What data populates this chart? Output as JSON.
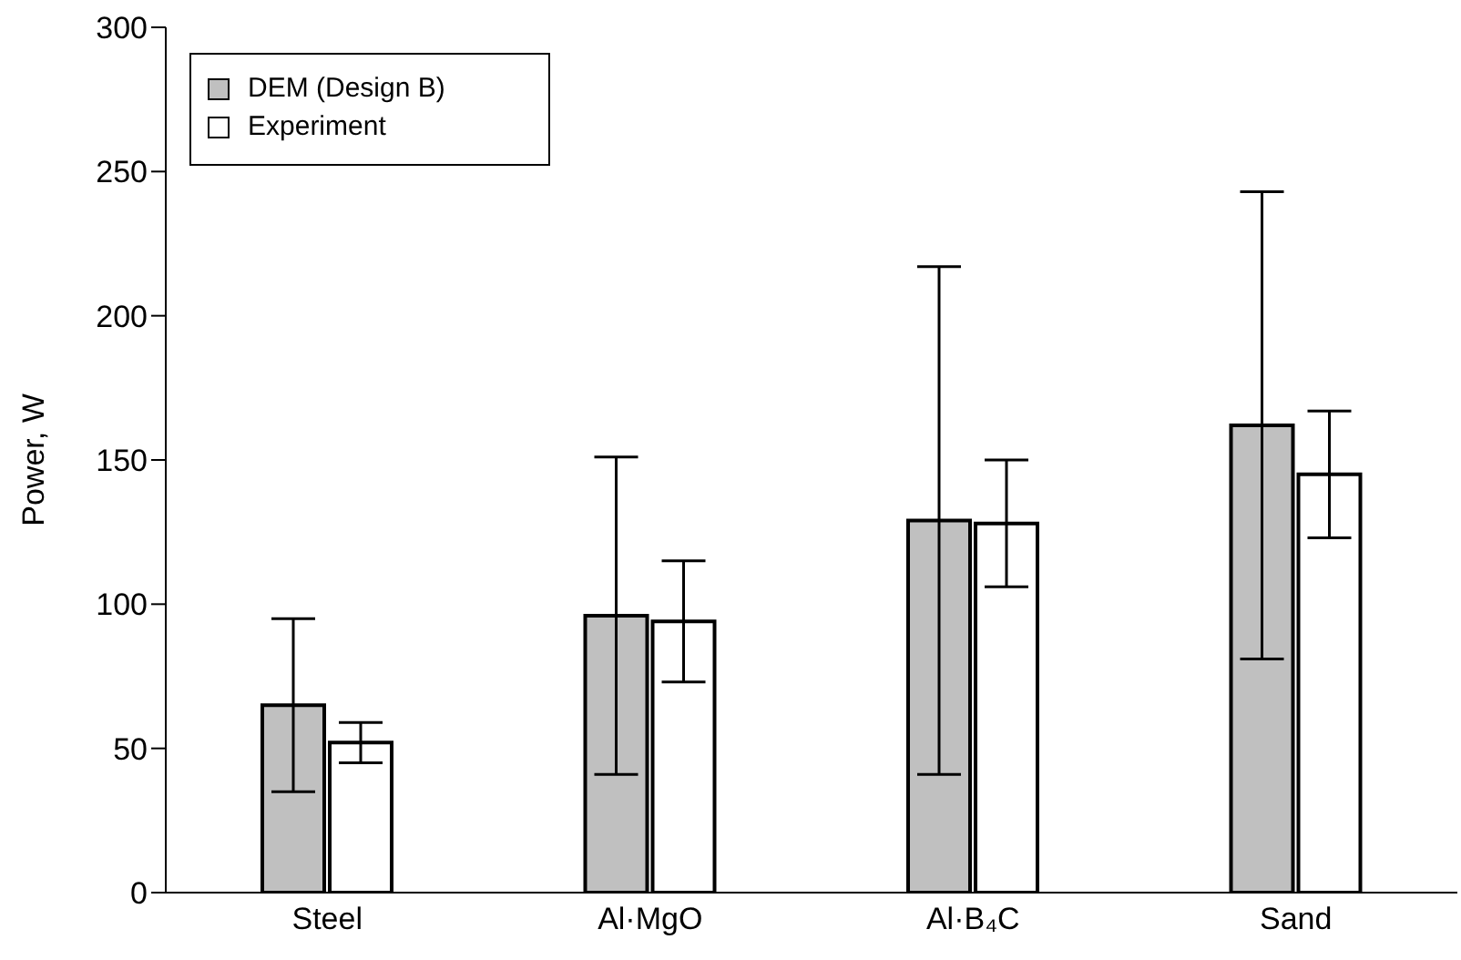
{
  "chart_data": {
    "type": "bar",
    "ylabel": "Power, W",
    "categories": [
      "Steel",
      "Al·MgO",
      "Al·B₄C",
      "Sand"
    ],
    "series": [
      {
        "name": "DEM (Design B)",
        "color": "#c0c0c0",
        "values": [
          65,
          96,
          129,
          162
        ],
        "errors": [
          30,
          55,
          88,
          81
        ]
      },
      {
        "name": "Experiment",
        "color": "#ffffff",
        "values": [
          52,
          94,
          128,
          145
        ],
        "errors": [
          7,
          21,
          22,
          22
        ]
      }
    ],
    "ylim": [
      0,
      300
    ],
    "yticks": [
      0,
      50,
      100,
      150,
      200,
      250,
      300
    ],
    "grid": false,
    "legend": "top left"
  }
}
